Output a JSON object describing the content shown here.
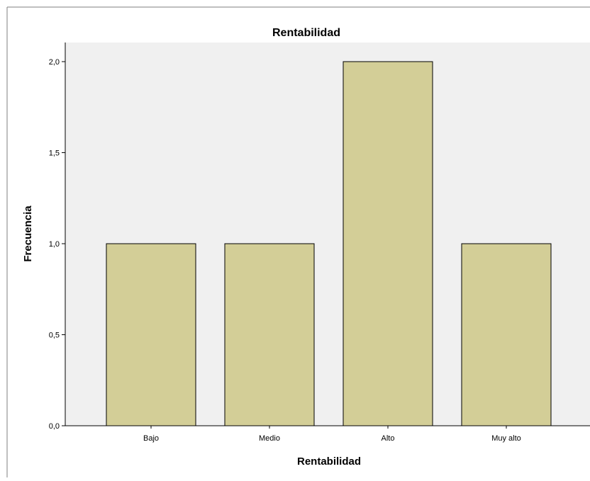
{
  "chart_data": {
    "type": "bar",
    "title": "Rentabilidad",
    "xlabel": "Rentabilidad",
    "ylabel": "Frecuencia",
    "categories": [
      "Bajo",
      "Medio",
      "Alto",
      "Muy alto"
    ],
    "values": [
      1,
      1,
      2,
      1
    ],
    "ylim": [
      0,
      2.0
    ],
    "yticks": [
      "0,0",
      "0,5",
      "1,0",
      "1,5",
      "2,0"
    ],
    "ytick_values": [
      0,
      0.5,
      1.0,
      1.5,
      2.0
    ],
    "grid": false,
    "legend": "none",
    "colors": {
      "bar_fill": "#d3ce97",
      "bar_stroke": "#000000",
      "plot_background": "#f0f0f0",
      "frame_border": "#7f7f7f"
    }
  }
}
